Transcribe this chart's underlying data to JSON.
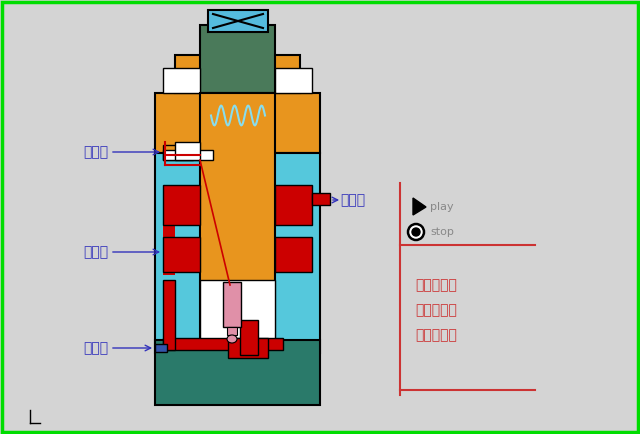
{
  "bg_color": "#d4d4d4",
  "border_color": "#00ee00",
  "orange": "#E8951E",
  "dark_green": "#4A7A5A",
  "cyan": "#55C8DC",
  "red": "#CC0000",
  "dark_teal": "#2A7A6A",
  "pink": "#E090A8",
  "white": "#FFFFFF",
  "black": "#000000",
  "blue_label": "#3333BB",
  "red_label": "#CC3333",
  "spring_color": "#88DDEE",
  "label_xie": "泄油口",
  "label_chu": "出油口",
  "label_jin": "进油口",
  "label_kong": "控制口",
  "text_line1": "内控内泄式",
  "text_line2": "外控内泄式",
  "text_line3": "外控外泄式",
  "play_label": "play",
  "stop_label": "stop"
}
